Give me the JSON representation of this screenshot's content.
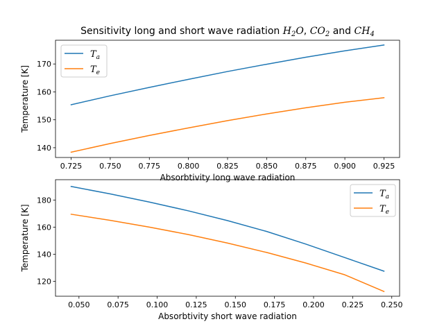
{
  "title": {
    "prefix": "Sensitivity long and short wave radiation ",
    "h2o": {
      "base": "H",
      "sub": "2",
      "tail": "O"
    },
    "co2": {
      "base": "CO",
      "sub": "2"
    },
    "ch4": {
      "base": "CH",
      "sub": "4"
    },
    "sep": ", ",
    "and": " and "
  },
  "chart_data": [
    {
      "type": "line",
      "xlabel": "Absorbtivity long wave radiation",
      "ylabel": "Temperature [K]",
      "xlim": [
        0.715,
        0.935
      ],
      "ylim": [
        136.5,
        178.5
      ],
      "xticks": [
        0.725,
        0.75,
        0.775,
        0.8,
        0.825,
        0.85,
        0.875,
        0.9,
        0.925
      ],
      "xtick_labels": [
        "0.725",
        "0.750",
        "0.775",
        "0.800",
        "0.825",
        "0.850",
        "0.875",
        "0.900",
        "0.925"
      ],
      "yticks": [
        140,
        150,
        160,
        170
      ],
      "ytick_labels": [
        "140",
        "150",
        "160",
        "170"
      ],
      "legend_position": "upper-left",
      "series": [
        {
          "name_base": "T",
          "name_sub": "a",
          "color": "#1f77b4",
          "x": [
            0.725,
            0.75,
            0.775,
            0.8,
            0.825,
            0.85,
            0.875,
            0.9,
            0.925
          ],
          "y": [
            155.4,
            158.6,
            161.6,
            164.5,
            167.3,
            169.9,
            172.4,
            174.7,
            176.8
          ]
        },
        {
          "name_base": "T",
          "name_sub": "e",
          "color": "#ff7f0e",
          "x": [
            0.725,
            0.75,
            0.775,
            0.8,
            0.825,
            0.85,
            0.875,
            0.9,
            0.925
          ],
          "y": [
            138.4,
            141.5,
            144.4,
            147.1,
            149.7,
            152.1,
            154.3,
            156.3,
            157.9
          ]
        }
      ]
    },
    {
      "type": "line",
      "xlabel": "Absorbtivity short wave radiation",
      "ylabel": "Temperature [K]",
      "xlim": [
        0.035,
        0.255
      ],
      "ylim": [
        109,
        195
      ],
      "xticks": [
        0.05,
        0.075,
        0.1,
        0.125,
        0.15,
        0.175,
        0.2,
        0.225,
        0.25
      ],
      "xtick_labels": [
        "0.050",
        "0.075",
        "0.100",
        "0.125",
        "0.150",
        "0.175",
        "0.200",
        "0.225",
        "0.250"
      ],
      "yticks": [
        120,
        140,
        160,
        180
      ],
      "ytick_labels": [
        "120",
        "140",
        "160",
        "180"
      ],
      "legend_position": "upper-right",
      "series": [
        {
          "name_base": "T",
          "name_sub": "a",
          "color": "#1f77b4",
          "x": [
            0.045,
            0.07,
            0.095,
            0.12,
            0.145,
            0.17,
            0.195,
            0.22,
            0.245
          ],
          "y": [
            190.0,
            184.5,
            178.5,
            172.0,
            164.8,
            156.8,
            147.5,
            137.5,
            127.5
          ]
        },
        {
          "name_base": "T",
          "name_sub": "e",
          "color": "#ff7f0e",
          "x": [
            0.045,
            0.07,
            0.095,
            0.12,
            0.145,
            0.17,
            0.195,
            0.22,
            0.245
          ],
          "y": [
            169.5,
            165.0,
            160.0,
            154.5,
            148.2,
            141.3,
            133.5,
            124.8,
            112.5
          ]
        }
      ]
    }
  ]
}
